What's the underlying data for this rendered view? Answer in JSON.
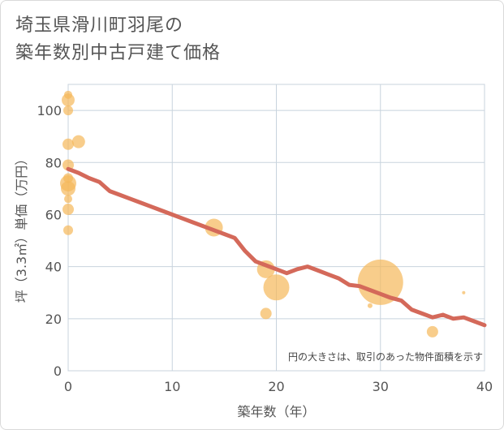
{
  "title_lines": [
    "埼玉県滑川町羽尾の",
    "築年数別中古戸建て価格"
  ],
  "note": "円の大きさは、取引のあった物件面積を示す",
  "chart_data": {
    "type": "scatter+line",
    "title": "埼玉県滑川町羽尾の 築年数別中古戸建て価格",
    "xlabel": "築年数（年）",
    "ylabel": "坪（3.3㎡）単価（万円）",
    "xlim": [
      0,
      40
    ],
    "ylim": [
      0,
      110
    ],
    "xticks": [
      0,
      10,
      20,
      30,
      40
    ],
    "yticks": [
      0,
      20,
      40,
      60,
      80,
      100
    ],
    "grid": true,
    "colors": {
      "bubble": "#f5b85a",
      "line": "#d4695a",
      "grid": "#c8d3dd"
    },
    "trend_line": {
      "x": [
        0,
        1,
        2,
        3,
        4,
        5,
        6,
        7,
        8,
        9,
        10,
        11,
        12,
        13,
        14,
        15,
        16,
        17,
        18,
        19,
        20,
        21,
        22,
        23,
        24,
        25,
        26,
        27,
        28,
        29,
        30,
        31,
        32,
        33,
        34,
        35,
        36,
        37,
        38,
        39,
        40
      ],
      "y": [
        77.5,
        76,
        74,
        72.5,
        69,
        67.5,
        66,
        64.5,
        63,
        61.5,
        60,
        58.5,
        57,
        55.5,
        54,
        52.5,
        51,
        46,
        42,
        40.5,
        39,
        37.5,
        39,
        40,
        38.5,
        37,
        35.5,
        33,
        32.5,
        31,
        29.5,
        28,
        27,
        23.5,
        22,
        20.5,
        21.5,
        20,
        20.5,
        19,
        17.5
      ]
    },
    "bubbles": [
      {
        "x": 0,
        "y": 106,
        "size": 5
      },
      {
        "x": 0,
        "y": 104,
        "size": 8
      },
      {
        "x": 0,
        "y": 100,
        "size": 6
      },
      {
        "x": 0,
        "y": 87,
        "size": 7
      },
      {
        "x": 0,
        "y": 79,
        "size": 7
      },
      {
        "x": 0,
        "y": 74,
        "size": 6
      },
      {
        "x": 0,
        "y": 72,
        "size": 10
      },
      {
        "x": 0,
        "y": 70,
        "size": 9
      },
      {
        "x": 0,
        "y": 66,
        "size": 5
      },
      {
        "x": 0,
        "y": 62,
        "size": 7
      },
      {
        "x": 0,
        "y": 54,
        "size": 6
      },
      {
        "x": 1,
        "y": 88,
        "size": 8
      },
      {
        "x": 14,
        "y": 55,
        "size": 11
      },
      {
        "x": 19,
        "y": 39,
        "size": 11
      },
      {
        "x": 19,
        "y": 22,
        "size": 7
      },
      {
        "x": 20,
        "y": 32,
        "size": 16
      },
      {
        "x": 29,
        "y": 25,
        "size": 3
      },
      {
        "x": 30,
        "y": 34,
        "size": 28
      },
      {
        "x": 35,
        "y": 15,
        "size": 7
      },
      {
        "x": 38,
        "y": 30,
        "size": 2
      }
    ]
  }
}
